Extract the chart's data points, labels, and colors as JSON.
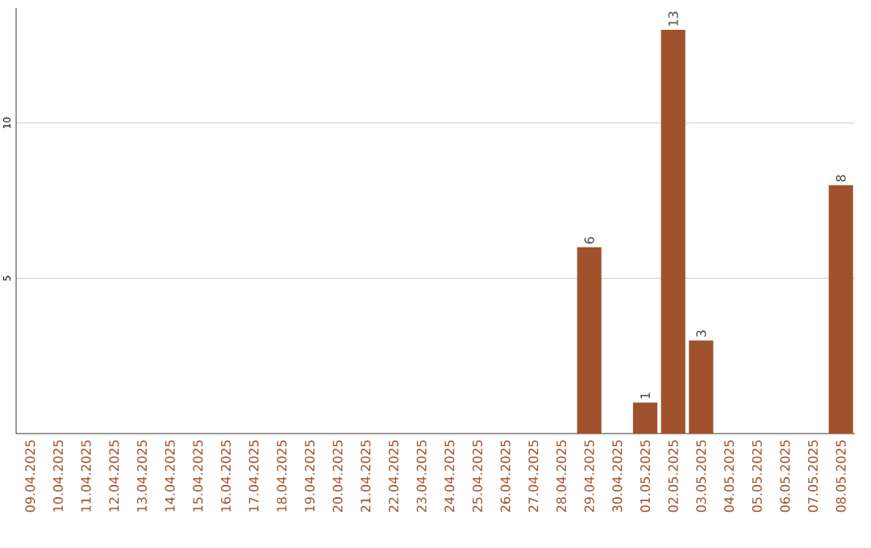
{
  "chart_data": {
    "type": "bar",
    "categories": [
      "09.04.2025",
      "10.04.2025",
      "11.04.2025",
      "12.04.2025",
      "13.04.2025",
      "14.04.2025",
      "15.04.2025",
      "16.04.2025",
      "17.04.2025",
      "18.04.2025",
      "19.04.2025",
      "20.04.2025",
      "21.04.2025",
      "22.04.2025",
      "23.04.2025",
      "24.04.2025",
      "25.04.2025",
      "26.04.2025",
      "27.04.2025",
      "28.04.2025",
      "29.04.2025",
      "30.04.2025",
      "01.05.2025",
      "02.05.2025",
      "03.05.2025",
      "04.05.2025",
      "05.05.2025",
      "06.05.2025",
      "07.05.2025",
      "08.05.2025"
    ],
    "values": [
      0,
      0,
      0,
      0,
      0,
      0,
      0,
      0,
      0,
      0,
      0,
      0,
      0,
      0,
      0,
      0,
      0,
      0,
      0,
      0,
      6,
      0,
      1,
      13,
      3,
      0,
      0,
      0,
      0,
      8
    ],
    "value_labels": [
      null,
      null,
      null,
      null,
      null,
      null,
      null,
      null,
      null,
      null,
      null,
      null,
      null,
      null,
      null,
      null,
      null,
      null,
      null,
      null,
      "6",
      null,
      "1",
      "13",
      "3",
      null,
      null,
      null,
      null,
      "8"
    ],
    "color": "#a0522d",
    "ylim": [
      0,
      13.7
    ],
    "yticks": [
      5,
      10
    ],
    "grid": "y"
  }
}
